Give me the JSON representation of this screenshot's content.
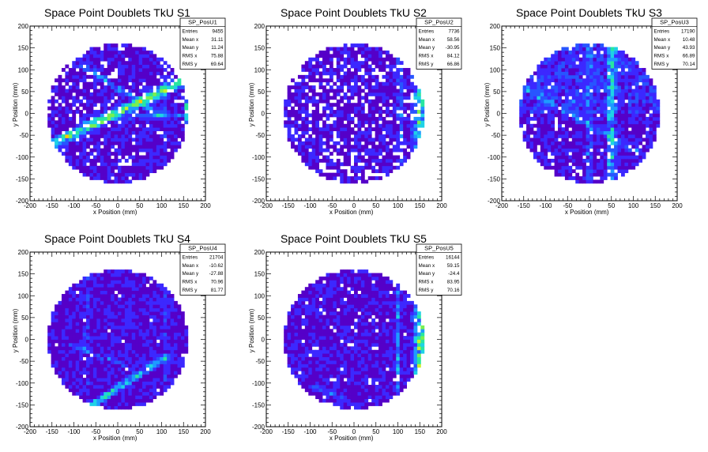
{
  "chart_data": [
    {
      "type": "heatmap",
      "title": "Space Point Doublets TkU S1",
      "xlabel": "x Position (mm)",
      "ylabel": "y Position (mm)",
      "xlim": [
        -200,
        200
      ],
      "ylim": [
        -200,
        200
      ],
      "xticks": [
        "-200",
        "-150",
        "-100",
        "-50",
        "0",
        "50",
        "100",
        "150",
        "200"
      ],
      "yticks": [
        "-200",
        "-150",
        "-100",
        "-50",
        "0",
        "50",
        "100",
        "150",
        "200"
      ],
      "stats": {
        "name": "SP_PosU1",
        "rows": [
          {
            "label": "Entries",
            "value": "9455"
          },
          {
            "label": "Mean x",
            "value": "31.11"
          },
          {
            "label": "Mean y",
            "value": "11.24"
          },
          {
            "label": "RMS x",
            "value": "75.88"
          },
          {
            "label": "RMS y",
            "value": "69.64"
          }
        ]
      },
      "features": {
        "radius": 160,
        "bands": [
          {
            "x1": -150,
            "y1": -70,
            "x2": 160,
            "y2": 80,
            "w": 16,
            "s": 6
          },
          {
            "x1": -80,
            "y1": 110,
            "x2": 100,
            "y2": -5,
            "w": 10,
            "s": 2.5
          },
          {
            "x1": -10,
            "y1": -10,
            "x2": 155,
            "y2": -5,
            "w": 8,
            "s": 2
          }
        ],
        "stripes": [
          {
            "x": 160,
            "w": 12,
            "s": 6
          },
          {
            "x": 105,
            "w": 6,
            "s": 2
          }
        ],
        "holes": 0.12
      }
    },
    {
      "type": "heatmap",
      "title": "Space Point Doublets TkU S2",
      "xlabel": "x Position (mm)",
      "ylabel": "y Position (mm)",
      "xlim": [
        -200,
        200
      ],
      "ylim": [
        -200,
        200
      ],
      "xticks": [
        "-200",
        "-150",
        "-100",
        "-50",
        "0",
        "50",
        "100",
        "150",
        "200"
      ],
      "yticks": [
        "-200",
        "-150",
        "-100",
        "-50",
        "0",
        "50",
        "100",
        "150",
        "200"
      ],
      "stats": {
        "name": "SP_PosU2",
        "rows": [
          {
            "label": "Entries",
            "value": "7736"
          },
          {
            "label": "Mean x",
            "value": "58.56"
          },
          {
            "label": "Mean y",
            "value": "-30.95"
          },
          {
            "label": "RMS x",
            "value": "84.12"
          },
          {
            "label": "RMS y",
            "value": "66.86"
          }
        ]
      },
      "features": {
        "radius": 160,
        "bands": [],
        "stripes": [
          {
            "x": 150,
            "w": 22,
            "s": 5
          },
          {
            "x": 105,
            "w": 8,
            "s": 2.5
          }
        ],
        "holes": 0.2
      }
    },
    {
      "type": "heatmap",
      "title": "Space Point Doublets TkU S3",
      "xlabel": "x Position (mm)",
      "ylabel": "y Position (mm)",
      "xlim": [
        -200,
        200
      ],
      "ylim": [
        -200,
        200
      ],
      "xticks": [
        "-200",
        "-150",
        "-100",
        "-50",
        "0",
        "50",
        "100",
        "150",
        "200"
      ],
      "yticks": [
        "-200",
        "-150",
        "-100",
        "-50",
        "0",
        "50",
        "100",
        "150",
        "200"
      ],
      "stats": {
        "name": "SP_PosU3",
        "rows": [
          {
            "label": "Entries",
            "value": "17190"
          },
          {
            "label": "Mean x",
            "value": "10.48"
          },
          {
            "label": "Mean y",
            "value": "43.93"
          },
          {
            "label": "RMS x",
            "value": "66.89"
          },
          {
            "label": "RMS y",
            "value": "70.14"
          }
        ]
      },
      "features": {
        "radius": 160,
        "bands": [
          {
            "x1": -150,
            "y1": 60,
            "x2": 110,
            "y2": -90,
            "w": 12,
            "s": 2
          }
        ],
        "stripes": [
          {
            "x": 50,
            "w": 14,
            "s": 4
          },
          {
            "x": 0,
            "w": 10,
            "s": 2
          }
        ],
        "holes": 0.08,
        "topBoost": 1.5
      }
    },
    {
      "type": "heatmap",
      "title": "Space Point Doublets TkU S4",
      "xlabel": "x Position (mm)",
      "ylabel": "y Position (mm)",
      "xlim": [
        -200,
        200
      ],
      "ylim": [
        -200,
        200
      ],
      "xticks": [
        "-200",
        "-150",
        "-100",
        "-50",
        "0",
        "50",
        "100",
        "150",
        "200"
      ],
      "yticks": [
        "-200",
        "-150",
        "-100",
        "-50",
        "0",
        "50",
        "100",
        "150",
        "200"
      ],
      "stats": {
        "name": "SP_PosU4",
        "rows": [
          {
            "label": "Entries",
            "value": "21704"
          },
          {
            "label": "Mean x",
            "value": "-10.62"
          },
          {
            "label": "Mean y",
            "value": "-27.88"
          },
          {
            "label": "RMS x",
            "value": "70.96"
          },
          {
            "label": "RMS y",
            "value": "81.77"
          }
        ]
      },
      "features": {
        "radius": 160,
        "bands": [
          {
            "x1": -60,
            "y1": -150,
            "x2": 110,
            "y2": -40,
            "w": 12,
            "s": 4
          },
          {
            "x1": -110,
            "y1": -10,
            "x2": 20,
            "y2": -60,
            "w": 10,
            "s": 1.5
          }
        ],
        "stripes": [
          {
            "x": -70,
            "w": 10,
            "s": 1.2
          },
          {
            "x": 110,
            "w": 10,
            "s": 1.2
          }
        ],
        "holes": 0.01
      }
    },
    {
      "type": "heatmap",
      "title": "Space Point Doublets TkU S5",
      "xlabel": "x Position (mm)",
      "ylabel": "y Position (mm)",
      "xlim": [
        -200,
        200
      ],
      "ylim": [
        -200,
        200
      ],
      "xticks": [
        "-200",
        "-150",
        "-100",
        "-50",
        "0",
        "50",
        "100",
        "150",
        "200"
      ],
      "yticks": [
        "-200",
        "-150",
        "-100",
        "-50",
        "0",
        "50",
        "100",
        "150",
        "200"
      ],
      "stats": {
        "name": "SP_PosU5",
        "rows": [
          {
            "label": "Entries",
            "value": "16144"
          },
          {
            "label": "Mean x",
            "value": "59.15"
          },
          {
            "label": "Mean y",
            "value": "-24.4"
          },
          {
            "label": "RMS x",
            "value": "83.95"
          },
          {
            "label": "RMS y",
            "value": "70.16"
          }
        ]
      },
      "features": {
        "radius": 160,
        "bands": [
          {
            "x1": -90,
            "y1": -110,
            "x2": 10,
            "y2": -150,
            "w": 8,
            "s": 1.5
          }
        ],
        "stripes": [
          {
            "x": 150,
            "w": 20,
            "s": 6
          },
          {
            "x": 100,
            "w": 8,
            "s": 2.5
          }
        ],
        "holes": 0.05
      }
    }
  ],
  "colorscale": [
    "#5500c8",
    "#3c28ff",
    "#2855ff",
    "#1e9bff",
    "#1ed2e6",
    "#28e6a0",
    "#78f050",
    "#c8f028",
    "#ffc800",
    "#ff5000"
  ]
}
